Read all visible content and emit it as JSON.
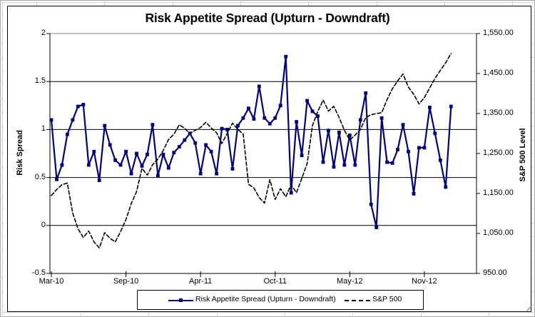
{
  "chart": {
    "title": "Risk Appetite Spread (Upturn - Downdraft)",
    "left_axis": {
      "title": "Risk Spread"
    },
    "right_axis": {
      "title": "S&P 500 Level"
    },
    "legend": {
      "items": [
        {
          "label": "Risk Appetite Spread (Upturn - Downdraft)",
          "color": "#000080",
          "style": "solid-with-square-marker"
        },
        {
          "label": "S&P 500",
          "color": "#000000",
          "style": "dashed"
        }
      ]
    }
  },
  "chart_data": {
    "type": "line",
    "title": "Risk Appetite Spread (Upturn - Downdraft)",
    "x_tick_labels": [
      "Mar-10",
      "Sep-10",
      "Apr-11",
      "Oct-11",
      "May-12",
      "Nov-12"
    ],
    "x_tick_indices": [
      0,
      14,
      28,
      42,
      56,
      70
    ],
    "num_points": 76,
    "grid": true,
    "legend_position": "bottom",
    "left_axis": {
      "label": "Risk Spread",
      "ylim": [
        -0.5,
        2
      ],
      "tick_values": [
        2,
        1.5,
        1,
        0.5,
        0,
        -0.5
      ],
      "tick_labels": [
        "2",
        "1.5",
        "1",
        "0.5",
        "0",
        "-0.5"
      ]
    },
    "right_axis": {
      "label": "S&P 500 Level",
      "ylim": [
        950,
        1550
      ],
      "tick_values": [
        1550,
        1450,
        1350,
        1250,
        1150,
        1050,
        950
      ],
      "tick_labels": [
        "1,550.00",
        "1,450.00",
        "1,350.00",
        "1,250.00",
        "1,150.00",
        "1,050.00",
        "950.00"
      ]
    },
    "series": [
      {
        "name": "Risk Appetite Spread (Upturn - Downdraft)",
        "axis": "left",
        "color": "#000080",
        "line": "solid",
        "marker": "square",
        "values": [
          1.1,
          0.48,
          0.63,
          0.95,
          1.1,
          1.24,
          1.26,
          0.63,
          0.77,
          0.47,
          1.04,
          0.84,
          0.68,
          0.63,
          0.77,
          0.54,
          0.75,
          0.62,
          0.74,
          1.05,
          0.52,
          0.74,
          0.6,
          0.76,
          0.82,
          0.89,
          0.96,
          0.86,
          0.54,
          0.84,
          0.77,
          0.54,
          1.01,
          1.0,
          0.59,
          1.04,
          1.12,
          1.22,
          1.11,
          1.45,
          1.12,
          1.06,
          1.12,
          1.25,
          1.76,
          0.34,
          1.08,
          0.73,
          1.3,
          1.19,
          1.14,
          0.66,
          0.99,
          0.61,
          0.97,
          0.63,
          0.94,
          0.63,
          1.1,
          1.38,
          0.22,
          -0.02,
          1.12,
          0.66,
          0.65,
          0.79,
          1.05,
          0.77,
          0.33,
          0.81,
          0.81,
          1.23,
          0.96,
          0.68,
          0.4,
          1.24
        ]
      },
      {
        "name": "S&P 500",
        "axis": "right",
        "color": "#000000",
        "line": "dashed",
        "marker": "none",
        "values": [
          1145,
          1160,
          1172,
          1176,
          1101,
          1062,
          1040,
          1056,
          1029,
          1014,
          1052,
          1038,
          1029,
          1055,
          1085,
          1125,
          1155,
          1213,
          1196,
          1222,
          1236,
          1258,
          1285,
          1298,
          1322,
          1313,
          1300,
          1308,
          1315,
          1328,
          1314,
          1302,
          1275,
          1300,
          1326,
          1310,
          1299,
          1173,
          1164,
          1140,
          1126,
          1185,
          1135,
          1162,
          1142,
          1172,
          1152,
          1188,
          1225,
          1320,
          1355,
          1384,
          1356,
          1368,
          1340,
          1308,
          1284,
          1296,
          1310,
          1340,
          1347,
          1350,
          1352,
          1385,
          1412,
          1432,
          1449,
          1416,
          1398,
          1374,
          1390,
          1414,
          1438,
          1458,
          1477,
          1500
        ]
      }
    ],
    "colors": {
      "spread_line": "#000080",
      "sp500_line": "#000000",
      "gridline": "#000000",
      "plot_border_top": "#808080",
      "sheet_gridline": "#d4d4d4"
    }
  }
}
